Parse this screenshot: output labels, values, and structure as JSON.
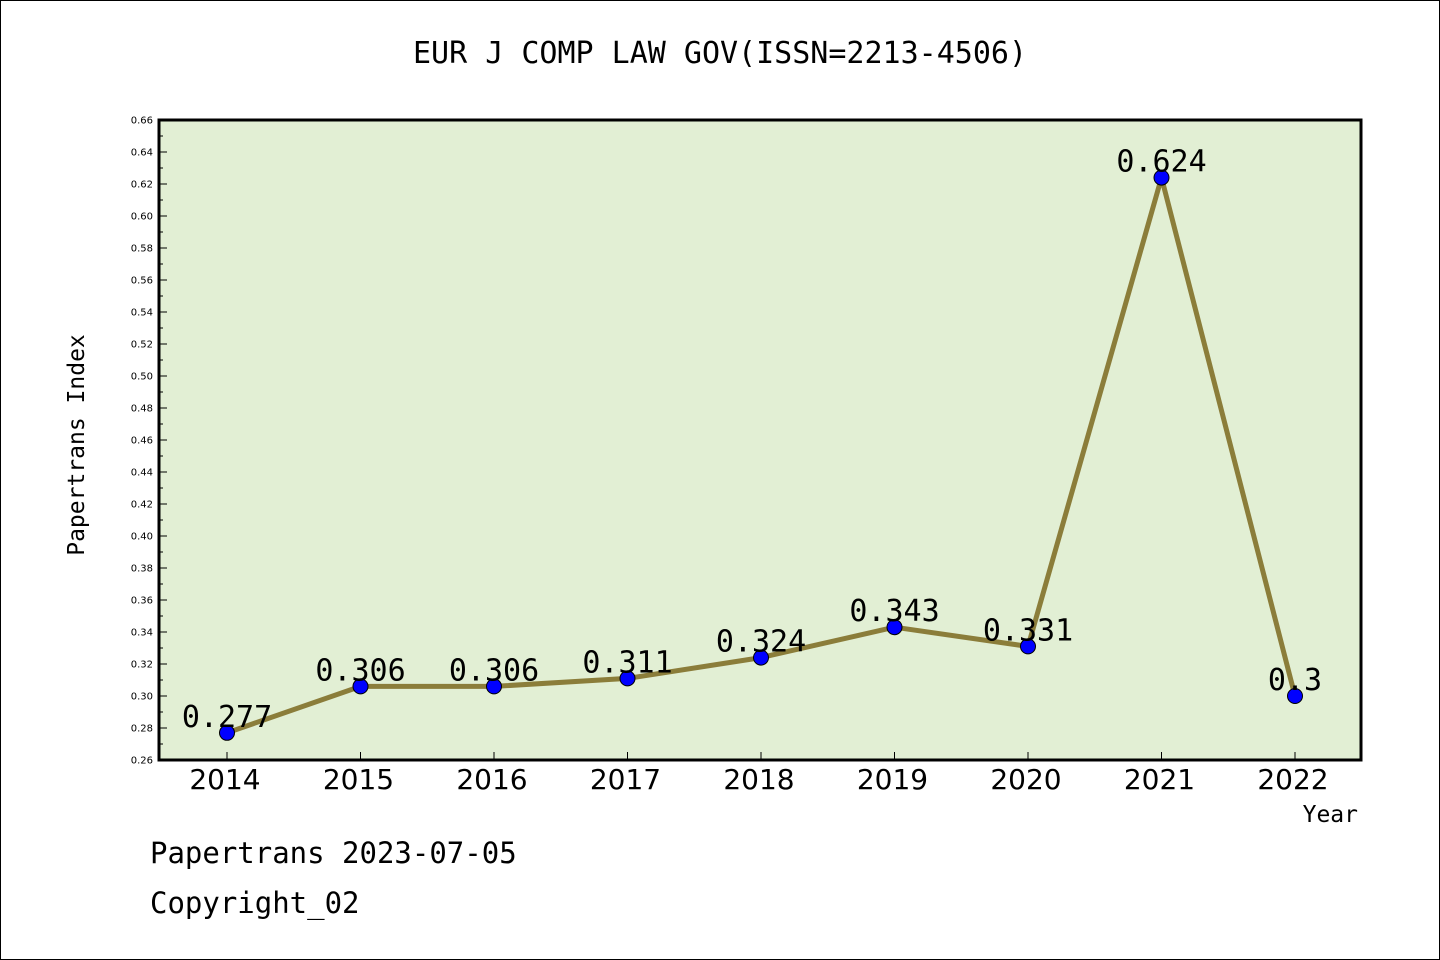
{
  "chart_data": {
    "type": "line",
    "title": "EUR J COMP LAW GOV(ISSN=2213-4506)",
    "xlabel": "Year",
    "ylabel": "Papertrans Index",
    "categories": [
      "2014",
      "2015",
      "2016",
      "2017",
      "2018",
      "2019",
      "2020",
      "2021",
      "2022"
    ],
    "series": [
      {
        "values": [
          0.277,
          0.306,
          0.306,
          0.311,
          0.324,
          0.343,
          0.331,
          0.624,
          0.3
        ]
      }
    ],
    "data_labels": [
      "0.277",
      "0.306",
      "0.306",
      "0.311",
      "0.324",
      "0.343",
      "0.331",
      "0.624",
      "0.3"
    ],
    "ylim": [
      0.26,
      0.66
    ],
    "yticks": [
      "0.26",
      "0.28",
      "0.30",
      "0.32",
      "0.34",
      "0.36",
      "0.38",
      "0.40",
      "0.42",
      "0.44",
      "0.46",
      "0.48",
      "0.50",
      "0.52",
      "0.54",
      "0.56",
      "0.58",
      "0.60",
      "0.62",
      "0.64",
      "0.66"
    ],
    "grid": false,
    "legend": "none",
    "colors": {
      "plot_bg": "#e2efd4",
      "line": "#8b7d3a",
      "marker": "#0000ff"
    }
  },
  "footer": {
    "line1": "Papertrans 2023-07-05",
    "line2": "Copyright_02"
  }
}
